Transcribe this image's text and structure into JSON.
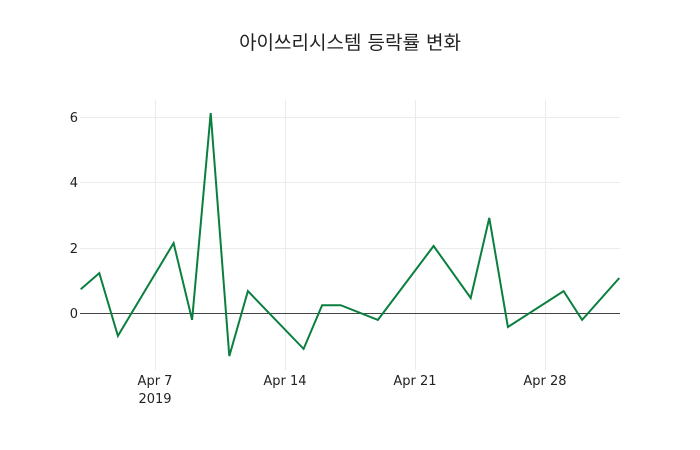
{
  "chart_data": {
    "type": "line",
    "title": "아이쓰리시스템 등락률 변화",
    "xlabel": "",
    "ylabel": "",
    "x": [
      "2019-04-03",
      "2019-04-04",
      "2019-04-05",
      "2019-04-08",
      "2019-04-09",
      "2019-04-10",
      "2019-04-11",
      "2019-04-12",
      "2019-04-15",
      "2019-04-16",
      "2019-04-17",
      "2019-04-19",
      "2019-04-22",
      "2019-04-24",
      "2019-04-25",
      "2019-04-26",
      "2019-04-29",
      "2019-04-30",
      "2019-05-02"
    ],
    "series": [
      {
        "name": "등락률",
        "color": "#0a7f3f",
        "values": [
          0.73,
          1.22,
          -0.7,
          2.14,
          -0.21,
          6.12,
          -1.32,
          0.67,
          -1.1,
          0.24,
          0.24,
          -0.21,
          2.05,
          0.46,
          2.91,
          -0.43,
          0.67,
          -0.21,
          1.07
        ]
      }
    ],
    "yticks": [
      0,
      2,
      4,
      6
    ],
    "xticks": [
      "Apr 7\n2019",
      "Apr 14",
      "Apr 21",
      "Apr 28"
    ],
    "ylim": [
      -1.6,
      6.6
    ],
    "grid": true,
    "legend": false
  },
  "labels": {
    "ytick_0": "0",
    "ytick_2": "2",
    "ytick_4": "4",
    "ytick_6": "6",
    "xtick_apr7": "Apr 7",
    "xtick_year": "2019",
    "xtick_apr14": "Apr 14",
    "xtick_apr21": "Apr 21",
    "xtick_apr28": "Apr 28"
  }
}
